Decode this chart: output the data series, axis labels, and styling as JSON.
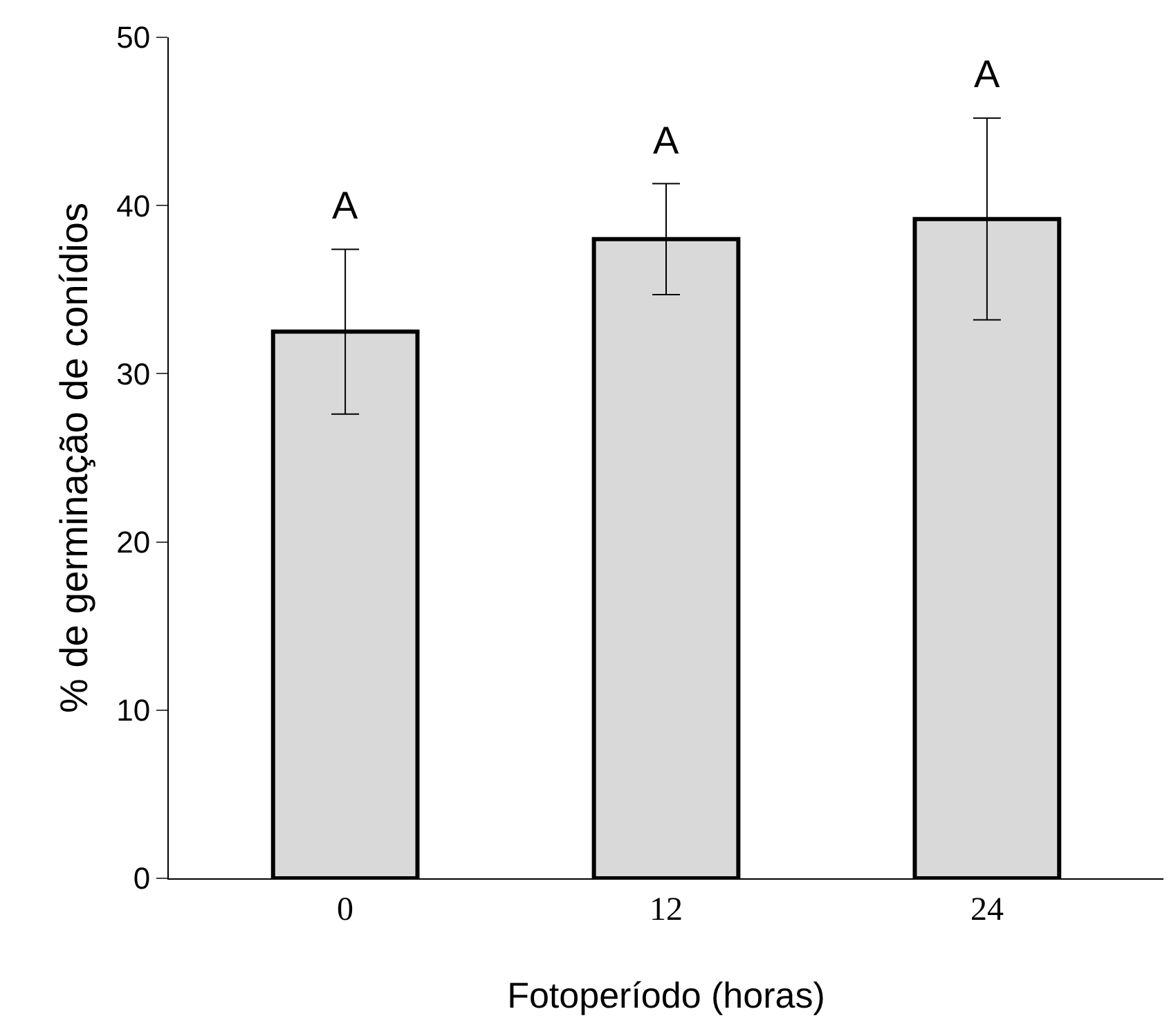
{
  "chart_data": {
    "type": "bar",
    "xlabel": "Fotoperíodo (horas)",
    "ylabel": "% de germinação de conídios",
    "categories": [
      "0",
      "12",
      "24"
    ],
    "values": [
      32.5,
      38.0,
      39.2
    ],
    "errors": [
      4.9,
      3.3,
      6.0
    ],
    "color": "#d9d9d9",
    "ylim": [
      0,
      50
    ],
    "yticks": [
      0,
      10,
      20,
      30,
      40,
      50
    ],
    "annotations": [
      "A",
      "A",
      "A"
    ]
  }
}
